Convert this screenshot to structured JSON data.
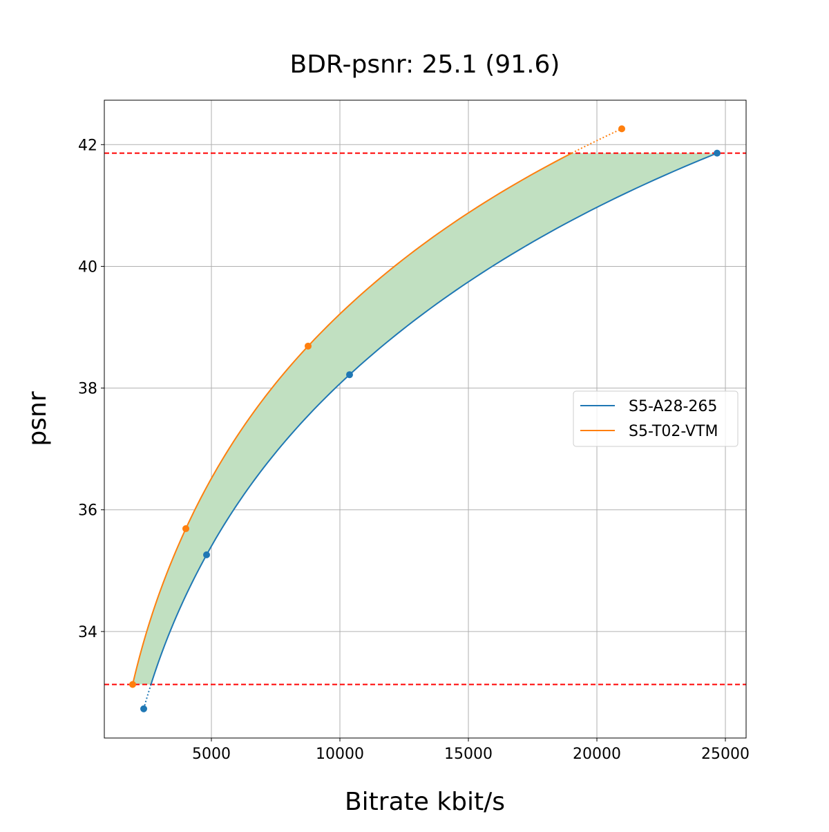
{
  "chart_data": {
    "type": "line",
    "title": "BDR-psnr: 25.1 (91.6)",
    "xlabel": "Bitrate kbit/s",
    "ylabel": "psnr",
    "xlim": [
      833,
      25806
    ],
    "ylim": [
      32.25,
      42.73
    ],
    "xticks": [
      5000,
      10000,
      15000,
      20000,
      25000
    ],
    "yticks": [
      34,
      36,
      38,
      40,
      42
    ],
    "grid": true,
    "legend_position": "center-right",
    "series": [
      {
        "name": "S5-A28-265",
        "color": "#1f77b4",
        "x": [
          2366,
          4812,
          10376,
          24677
        ],
        "y": [
          32.73,
          35.26,
          38.22,
          41.86
        ]
      },
      {
        "name": "S5-T02-VTM",
        "color": "#ff7f0e",
        "x": [
          1935,
          4005,
          8763,
          20968
        ],
        "y": [
          33.13,
          35.69,
          38.69,
          42.26
        ]
      }
    ],
    "reference_lines": {
      "color": "#ff0000",
      "y": [
        41.86,
        33.13
      ]
    },
    "fill": {
      "color": "#c1e0c1",
      "between_y": [
        33.13,
        41.86
      ]
    }
  }
}
